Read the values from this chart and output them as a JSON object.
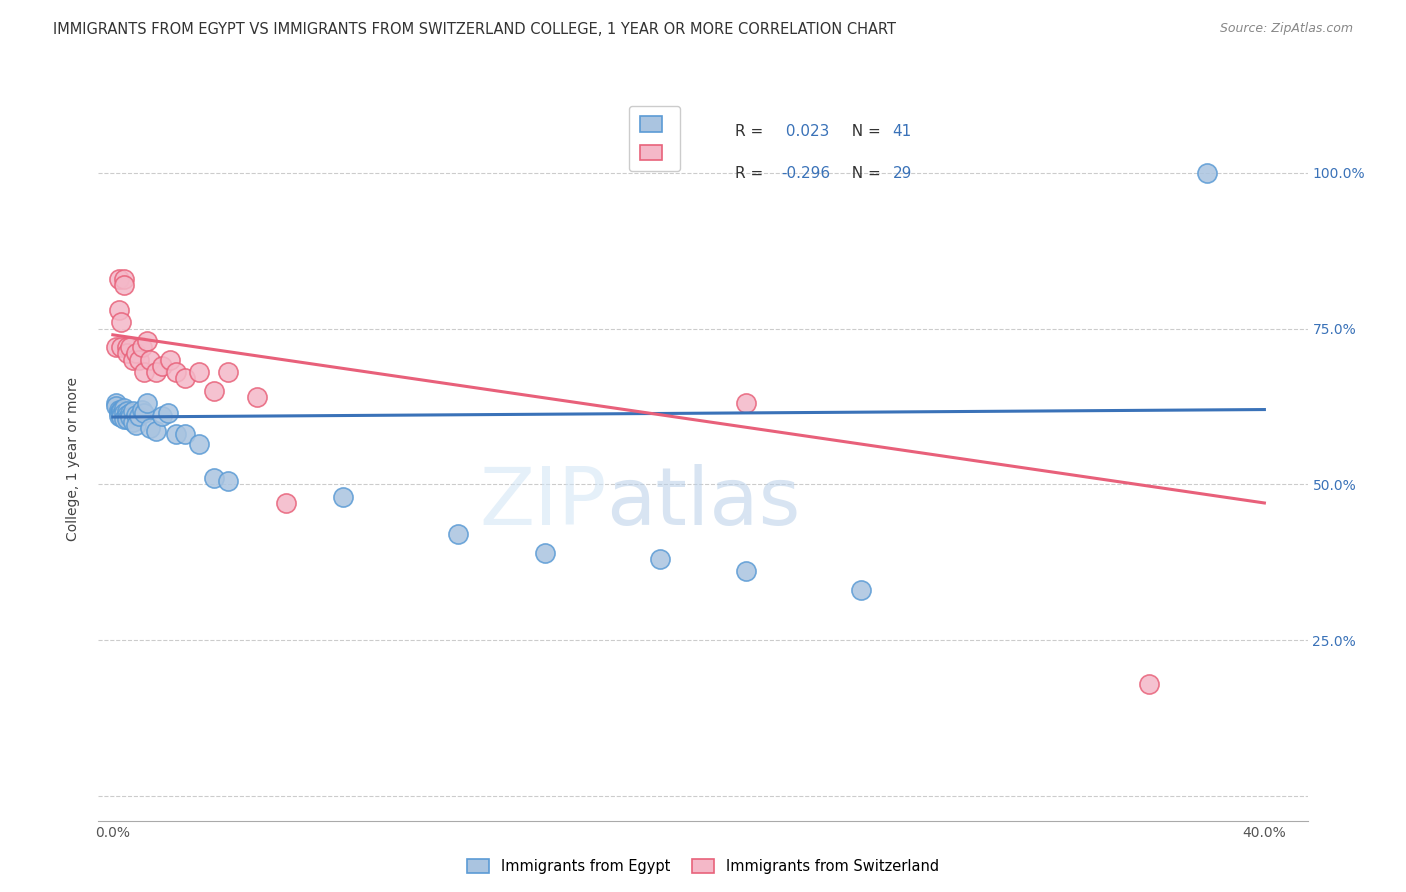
{
  "title": "IMMIGRANTS FROM EGYPT VS IMMIGRANTS FROM SWITZERLAND COLLEGE, 1 YEAR OR MORE CORRELATION CHART",
  "source": "Source: ZipAtlas.com",
  "ylabel": "College, 1 year or more",
  "egypt_color": "#aac4e0",
  "egypt_edge_color": "#5b9bd5",
  "switzerland_color": "#f4b8c8",
  "switzerland_edge_color": "#e8627a",
  "egypt_R": "0.023",
  "egypt_N": "41",
  "switzerland_R": "-0.296",
  "switzerland_N": "29",
  "egypt_line_color": "#3a72b8",
  "switzerland_line_color": "#e8607a",
  "watermark_zip": "ZIP",
  "watermark_atlas": "atlas",
  "grid_color": "#cccccc",
  "background_color": "#ffffff",
  "right_tick_color": "#3a72b8",
  "egypt_scatter_x": [
    0.001,
    0.001,
    0.002,
    0.002,
    0.002,
    0.003,
    0.003,
    0.003,
    0.003,
    0.004,
    0.004,
    0.004,
    0.005,
    0.005,
    0.005,
    0.006,
    0.006,
    0.007,
    0.007,
    0.008,
    0.008,
    0.009,
    0.01,
    0.011,
    0.012,
    0.013,
    0.015,
    0.017,
    0.019,
    0.022,
    0.025,
    0.03,
    0.035,
    0.04,
    0.08,
    0.12,
    0.15,
    0.19,
    0.22,
    0.26,
    0.38
  ],
  "egypt_scatter_y": [
    0.63,
    0.625,
    0.62,
    0.615,
    0.61,
    0.62,
    0.618,
    0.612,
    0.608,
    0.622,
    0.615,
    0.605,
    0.618,
    0.612,
    0.605,
    0.615,
    0.608,
    0.618,
    0.6,
    0.612,
    0.595,
    0.61,
    0.62,
    0.615,
    0.63,
    0.59,
    0.585,
    0.61,
    0.615,
    0.58,
    0.58,
    0.565,
    0.51,
    0.505,
    0.48,
    0.42,
    0.39,
    0.38,
    0.36,
    0.33,
    1.0
  ],
  "switzerland_scatter_x": [
    0.001,
    0.002,
    0.002,
    0.003,
    0.003,
    0.004,
    0.004,
    0.005,
    0.005,
    0.006,
    0.007,
    0.008,
    0.009,
    0.01,
    0.011,
    0.012,
    0.013,
    0.015,
    0.017,
    0.02,
    0.022,
    0.025,
    0.03,
    0.035,
    0.04,
    0.05,
    0.06,
    0.22,
    0.36
  ],
  "switzerland_scatter_y": [
    0.72,
    0.78,
    0.83,
    0.72,
    0.76,
    0.83,
    0.82,
    0.72,
    0.71,
    0.72,
    0.7,
    0.71,
    0.7,
    0.72,
    0.68,
    0.73,
    0.7,
    0.68,
    0.69,
    0.7,
    0.68,
    0.67,
    0.68,
    0.65,
    0.68,
    0.64,
    0.47,
    0.63,
    0.18
  ],
  "xlim": [
    -0.005,
    0.415
  ],
  "ylim": [
    -0.04,
    1.12
  ],
  "xlabel_tick_vals": [
    0.0,
    0.1,
    0.2,
    0.3,
    0.4
  ],
  "xlabel_ticks": [
    "0.0%",
    "",
    "",
    "",
    "40.0%"
  ],
  "ylabel_tick_vals": [
    0.0,
    0.25,
    0.5,
    0.75,
    1.0
  ],
  "ylabel_ticks": [
    "",
    "25.0%",
    "50.0%",
    "75.0%",
    "100.0%"
  ],
  "egypt_trendline_y0": 0.608,
  "egypt_trendline_y1": 0.62,
  "switzerland_trendline_y0": 0.74,
  "switzerland_trendline_y1": 0.47
}
